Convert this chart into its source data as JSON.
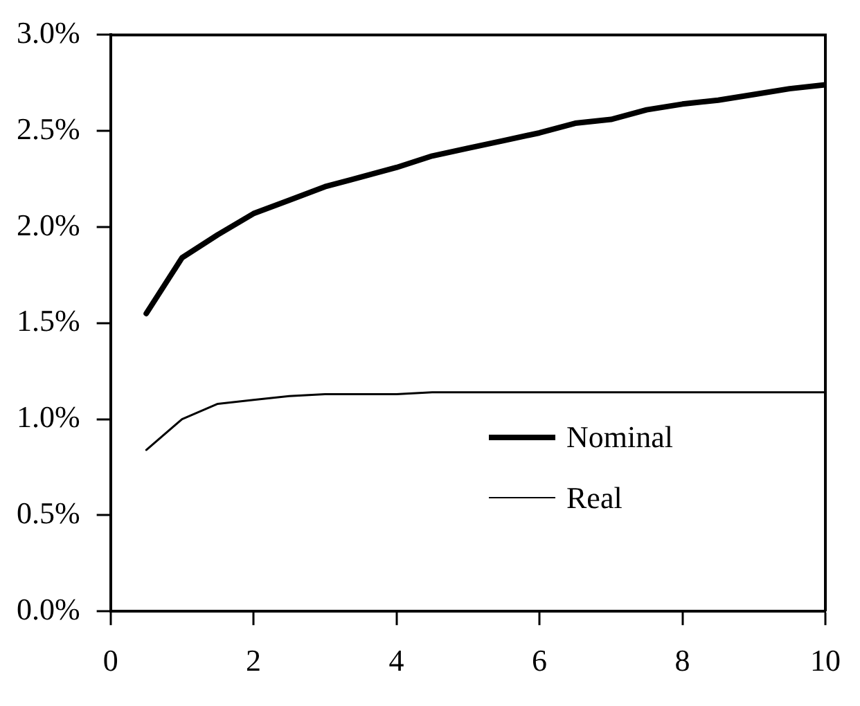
{
  "chart_data": {
    "type": "line",
    "x": [
      0.5,
      1,
      1.5,
      2,
      2.5,
      3,
      3.5,
      4,
      4.5,
      5,
      5.5,
      6,
      6.5,
      7,
      7.5,
      8,
      8.5,
      9,
      9.5,
      10
    ],
    "series": [
      {
        "name": "Nominal",
        "color": "#000000",
        "values": [
          1.55,
          1.84,
          1.96,
          2.07,
          2.14,
          2.21,
          2.26,
          2.31,
          2.37,
          2.41,
          2.45,
          2.49,
          2.54,
          2.56,
          2.61,
          2.64,
          2.66,
          2.69,
          2.72,
          2.74
        ]
      },
      {
        "name": "Real",
        "color": "#000000",
        "values": [
          0.84,
          1.0,
          1.08,
          1.1,
          1.12,
          1.13,
          1.13,
          1.13,
          1.14,
          1.14,
          1.14,
          1.14,
          1.14,
          1.14,
          1.14,
          1.14,
          1.14,
          1.14,
          1.14,
          1.14
        ]
      }
    ],
    "xlim": [
      0,
      10
    ],
    "xticks": [
      0,
      2,
      4,
      6,
      8,
      10
    ],
    "ylim": [
      0,
      3
    ],
    "yticks": [
      {
        "value": 0,
        "label": "0.0%"
      },
      {
        "value": 0.5,
        "label": "0.5%"
      },
      {
        "value": 1,
        "label": "1.0%"
      },
      {
        "value": 1.5,
        "label": "1.5%"
      },
      {
        "value": 2,
        "label": "2.0%"
      },
      {
        "value": 2.5,
        "label": "2.5%"
      },
      {
        "value": 3,
        "label": "3.0%"
      }
    ],
    "grid": false,
    "legend": "bottom right",
    "marker": "none",
    "line_style": "solid"
  }
}
